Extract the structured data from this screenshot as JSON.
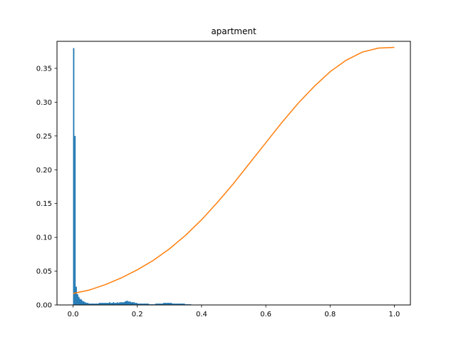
{
  "chart_data": {
    "type": "bar",
    "title": "apartment",
    "xlabel": "",
    "ylabel": "",
    "xlim": [
      -0.05,
      1.05
    ],
    "ylim": [
      0,
      0.39
    ],
    "grid": false,
    "x_ticks": [
      0.0,
      0.2,
      0.4,
      0.6,
      0.8,
      1.0
    ],
    "x_tick_labels": [
      "0.0",
      "0.2",
      "0.4",
      "0.6",
      "0.8",
      "1.0"
    ],
    "y_ticks": [
      0.0,
      0.05,
      0.1,
      0.15,
      0.2,
      0.25,
      0.3,
      0.35
    ],
    "y_tick_labels": [
      "0.00",
      "0.05",
      "0.10",
      "0.15",
      "0.20",
      "0.25",
      "0.30",
      "0.35"
    ],
    "colors": {
      "histogram": "#1f77b4",
      "curve": "#ff7f0e"
    },
    "series": [
      {
        "type": "histogram",
        "bin_width": 0.004,
        "bin_start": 0.0,
        "values": [
          0.38,
          0.25,
          0.027,
          0.016,
          0.012,
          0.009,
          0.008,
          0.006,
          0.005,
          0.004,
          0.003,
          0.003,
          0.002,
          0.002,
          0.002,
          0.002,
          0.002,
          0.002,
          0.002,
          0.002,
          0.003,
          0.003,
          0.003,
          0.003,
          0.003,
          0.003,
          0.003,
          0.003,
          0.004,
          0.003,
          0.003,
          0.004,
          0.003,
          0.003,
          0.004,
          0.003,
          0.004,
          0.004,
          0.004,
          0.004,
          0.005,
          0.006,
          0.006,
          0.005,
          0.005,
          0.004,
          0.004,
          0.004,
          0.003,
          0.003,
          0.002,
          0.002,
          0.002,
          0.002,
          0.002,
          0.002,
          0.002,
          0.002,
          0.002,
          0.001,
          0.001,
          0.001,
          0.001,
          0.001,
          0.002,
          0.002,
          0.002,
          0.002,
          0.002,
          0.002,
          0.003,
          0.003,
          0.003,
          0.003,
          0.003,
          0.003,
          0.003,
          0.002,
          0.002,
          0.002,
          0.002,
          0.002,
          0.002,
          0.002,
          0.002,
          0.002,
          0.002,
          0.001,
          0.001,
          0.001,
          0.001,
          0.001
        ]
      },
      {
        "type": "line",
        "x": [
          0.0,
          0.05,
          0.1,
          0.15,
          0.2,
          0.25,
          0.3,
          0.35,
          0.4,
          0.45,
          0.5,
          0.55,
          0.6,
          0.65,
          0.7,
          0.75,
          0.8,
          0.85,
          0.9,
          0.95,
          1.0
        ],
        "y": [
          0.017,
          0.022,
          0.03,
          0.04,
          0.052,
          0.066,
          0.083,
          0.103,
          0.126,
          0.152,
          0.18,
          0.21,
          0.24,
          0.27,
          0.298,
          0.323,
          0.345,
          0.362,
          0.374,
          0.38,
          0.381
        ]
      }
    ]
  }
}
